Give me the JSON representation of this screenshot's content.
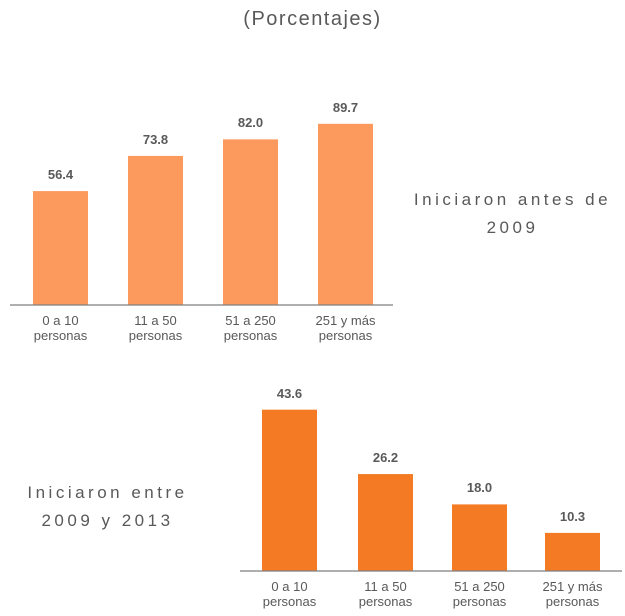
{
  "subtitle": "(Porcentajes)",
  "chart_data": [
    {
      "type": "bar",
      "label": "Iniciaron antes de 2009",
      "categories": [
        "0 a 10 personas",
        "11 a 50 personas",
        "51 a 250 personas",
        "251 y más personas"
      ],
      "values": [
        56.4,
        73.8,
        82.0,
        89.7
      ],
      "value_labels": [
        "56.4",
        "73.8",
        "82.0",
        "89.7"
      ],
      "color": "#fc9a5e",
      "ylim": [
        0,
        100
      ]
    },
    {
      "type": "bar",
      "label": "Iniciaron entre 2009 y 2013",
      "categories": [
        "0 a 10 personas",
        "11 a 50 personas",
        "51 a 250 personas",
        "251 y más personas"
      ],
      "values": [
        43.6,
        26.2,
        18.0,
        10.3
      ],
      "value_labels": [
        "43.6",
        "26.2",
        "18.0",
        "10.3"
      ],
      "color": "#f47a24",
      "ylim": [
        0,
        50
      ]
    }
  ]
}
